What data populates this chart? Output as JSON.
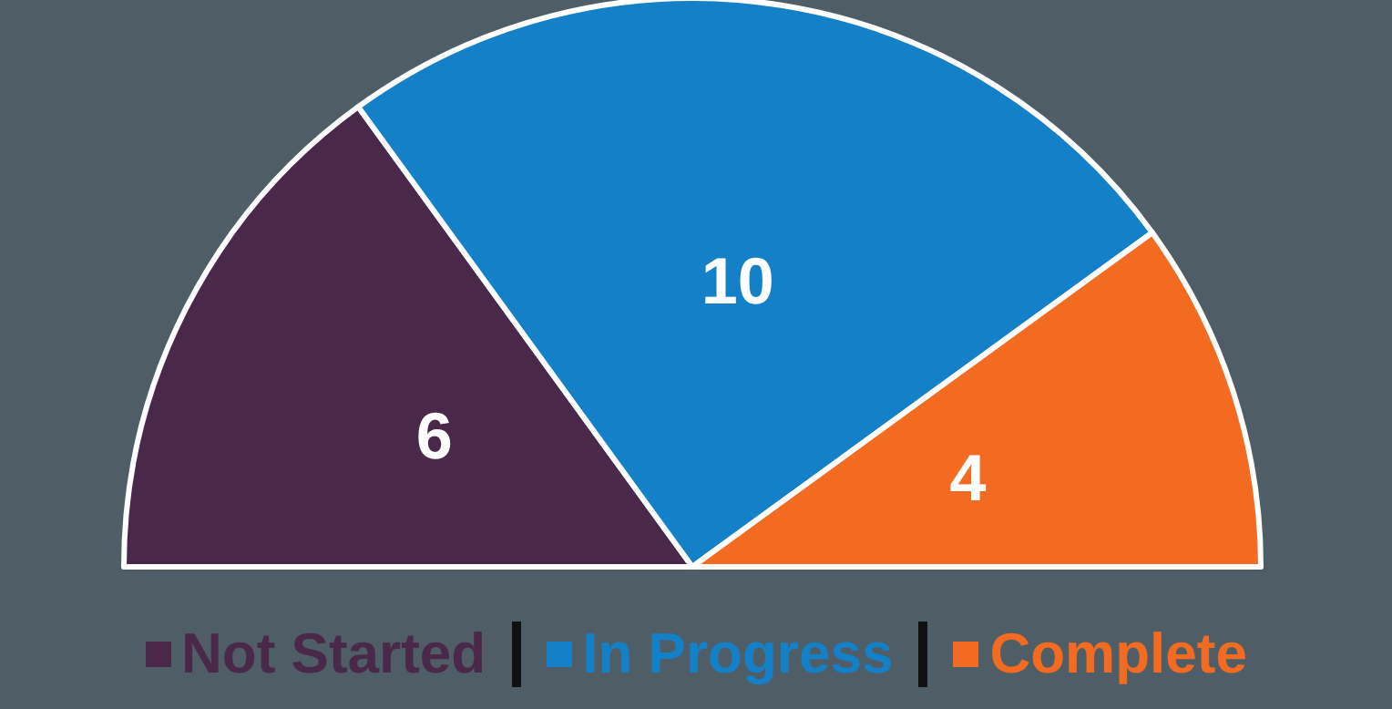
{
  "chart_data": {
    "type": "pie",
    "categories": [
      "Not Started",
      "In Progress",
      "Complete"
    ],
    "values": [
      6,
      10,
      4
    ],
    "colors": [
      "#4a2849",
      "#1380c8",
      "#f26b21"
    ],
    "data_labels": true,
    "legend": "bottom"
  }
}
